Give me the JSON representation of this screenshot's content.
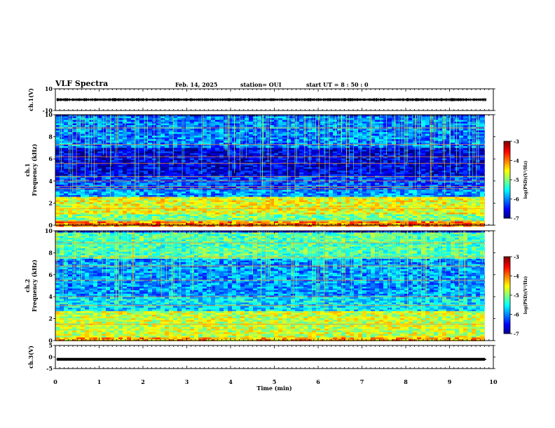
{
  "header": {
    "title": "VLF Spectra",
    "date": "Feb. 14, 2025",
    "station": "station= OUI",
    "start": "start  UT =   8  : 50 : 0"
  },
  "chart_data": [
    {
      "type": "line",
      "panel": "ch1-waveform",
      "ylabel": "ch.1(V)",
      "ylim": [
        -10,
        10
      ],
      "yticks": [
        "10",
        "-10"
      ],
      "xlim": [
        0,
        10
      ],
      "series": [
        {
          "baseline": 0,
          "noise_amplitude": 1.0,
          "color": "#000000"
        }
      ]
    },
    {
      "type": "heatmap",
      "panel": "ch1-spectrogram",
      "ylabel": "ch.1\nFrequency (kHz)",
      "ylim": [
        0,
        10
      ],
      "yticks": [
        "0",
        "2",
        "4",
        "6",
        "8",
        "10"
      ],
      "xlim": [
        0,
        9.8
      ],
      "colorbar": {
        "label": "log(PSD)(V²/Hz)",
        "range": [
          -7,
          -3
        ],
        "ticks": [
          "-3",
          "-4",
          "-5",
          "-6",
          "-7"
        ]
      },
      "bands": [
        {
          "fmin": 0.0,
          "fmax": 0.5,
          "level": -4.0
        },
        {
          "fmin": 0.5,
          "fmax": 1.0,
          "level": -5.0
        },
        {
          "fmin": 1.0,
          "fmax": 2.6,
          "level": -4.6
        },
        {
          "fmin": 2.6,
          "fmax": 3.2,
          "level": -5.9
        },
        {
          "fmin": 3.2,
          "fmax": 4.5,
          "level": -6.2
        },
        {
          "fmin": 4.5,
          "fmax": 7.0,
          "level": -6.6
        },
        {
          "fmin": 7.0,
          "fmax": 10.0,
          "level": -6.0
        }
      ],
      "lines_khz": [
        0.4,
        1.5,
        3.3,
        3.5,
        4.0,
        4.4,
        5.6,
        6.2,
        7.3,
        8.8
      ]
    },
    {
      "type": "heatmap",
      "panel": "ch2-spectrogram",
      "ylabel": "ch.2\nFrequency (kHz)",
      "ylim": [
        0,
        10
      ],
      "yticks": [
        "0",
        "2",
        "4",
        "6",
        "8",
        "10"
      ],
      "xlim": [
        0,
        9.8
      ],
      "colorbar": {
        "label": "log(PSD)(V²/Hz)",
        "range": [
          -7,
          -3
        ],
        "ticks": [
          "-3",
          "-4",
          "-5",
          "-6",
          "-7"
        ]
      },
      "bands": [
        {
          "fmin": 0.0,
          "fmax": 0.4,
          "level": -4.2
        },
        {
          "fmin": 0.4,
          "fmax": 2.8,
          "level": -4.7
        },
        {
          "fmin": 2.8,
          "fmax": 4.0,
          "level": -5.6
        },
        {
          "fmin": 4.0,
          "fmax": 7.5,
          "level": -5.9
        },
        {
          "fmin": 7.5,
          "fmax": 10.0,
          "level": -5.2
        }
      ],
      "lines_khz": [
        1.5,
        3.2,
        4.0,
        5.5,
        6.8,
        7.6,
        8.9
      ]
    },
    {
      "type": "line",
      "panel": "ch3-waveform",
      "ylabel": "ch.3(V)",
      "ylim": [
        -5,
        5
      ],
      "yticks": [
        "5",
        "0",
        "-5"
      ],
      "xlim": [
        0,
        10
      ],
      "xlabel": "Time (min)",
      "xticks": [
        "0",
        "1",
        "2",
        "3",
        "4",
        "5",
        "6",
        "7",
        "8",
        "9",
        "10"
      ],
      "series": [
        {
          "baseline": -1.0,
          "noise_amplitude": 0.2,
          "color": "#000000"
        }
      ]
    }
  ]
}
